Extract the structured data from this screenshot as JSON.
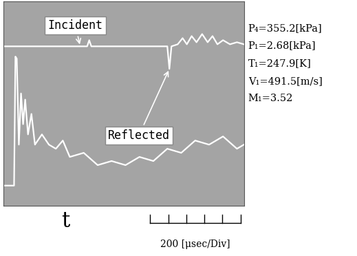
{
  "chart_data": {
    "type": "line",
    "xlim": [
      0,
      2660
    ],
    "ylim": [
      0,
      100
    ],
    "xticks": [],
    "yticks": [],
    "tick_labels": false,
    "grid": false,
    "series": [
      {
        "color": "#ffffff",
        "line_style": "solid",
        "x": [
          0,
          270,
          578,
          924,
          947,
          970,
          1348,
          1733,
          1810,
          1833,
          1856,
          1925,
          1979,
          2026,
          2079,
          2133,
          2195,
          2256,
          2310,
          2364,
          2426,
          2503,
          2580,
          2657
        ],
        "values": [
          78,
          78,
          78,
          78,
          81,
          78,
          78,
          78,
          78,
          67,
          78,
          79,
          82,
          79,
          83,
          80,
          84,
          80,
          83,
          79,
          81,
          79,
          80,
          79
        ]
      },
      {
        "color": "#ffffff",
        "line_style": "solid",
        "x": [
          0,
          116,
          131,
          146,
          169,
          193,
          216,
          239,
          270,
          308,
          347,
          424,
          501,
          578,
          655,
          732,
          886,
          1040,
          1194,
          1348,
          1502,
          1656,
          1810,
          1964,
          2118,
          2272,
          2426,
          2580,
          2657
        ],
        "values": [
          10,
          10,
          73,
          72,
          30,
          55,
          40,
          52,
          35,
          45,
          30,
          35,
          30,
          28,
          32,
          24,
          26,
          20,
          22,
          20,
          24,
          22,
          28,
          26,
          32,
          30,
          34,
          28,
          30
        ]
      }
    ],
    "annotations": [
      {
        "text": "Incident",
        "x": 847,
        "y": 78
      },
      {
        "text": "Reflected",
        "x": 1833,
        "y": 67
      }
    ],
    "x_label": "t",
    "time_scale": {
      "value": 200,
      "label": "200 [μsec/Div]"
    },
    "parameters": [
      "P₄=355.2[kPa]",
      "P₁=2.68[kPa]",
      "T₁=247.9[K]",
      "V₁=491.5[m/s]",
      "M₁=3.52"
    ]
  }
}
